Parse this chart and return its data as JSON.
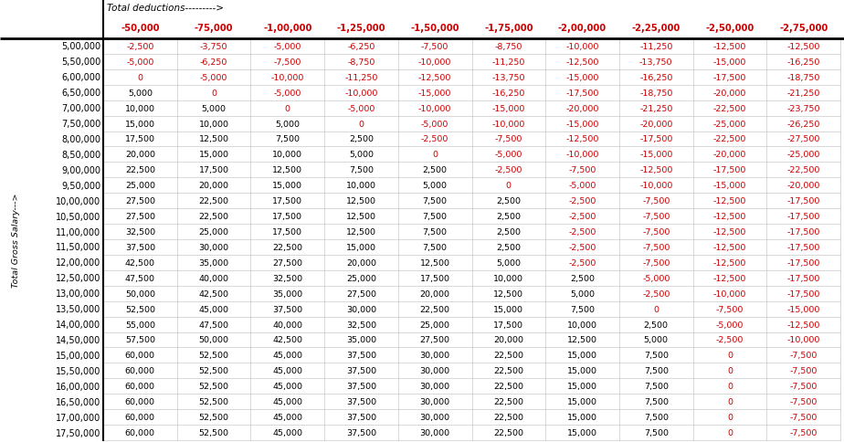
{
  "title_deductions": "Total deductions--------->",
  "col_header_label": "Total Gross Salary--->",
  "col_headers": [
    "-50,000",
    "-75,000",
    "-1,00,000",
    "-1,25,000",
    "-1,50,000",
    "-1,75,000",
    "-2,00,000",
    "-2,25,000",
    "-2,50,000",
    "-2,75,000"
  ],
  "row_labels": [
    "5,00,000",
    "5,50,000",
    "6,00,000",
    "6,50,000",
    "7,00,000",
    "7,50,000",
    "8,00,000",
    "8,50,000",
    "9,00,000",
    "9,50,000",
    "10,00,000",
    "10,50,000",
    "11,00,000",
    "11,50,000",
    "12,00,000",
    "12,50,000",
    "13,00,000",
    "13,50,000",
    "14,00,000",
    "14,50,000",
    "15,00,000",
    "15,50,000",
    "16,00,000",
    "16,50,000",
    "17,00,000",
    "17,50,000"
  ],
  "cell_data": [
    [
      "-2,500",
      "-3,750",
      "-5,000",
      "-6,250",
      "-7,500",
      "-8,750",
      "-10,000",
      "-11,250",
      "-12,500",
      "-12,500"
    ],
    [
      "-5,000",
      "-6,250",
      "-7,500",
      "-8,750",
      "-10,000",
      "-11,250",
      "-12,500",
      "-13,750",
      "-15,000",
      "-16,250"
    ],
    [
      "0",
      "-5,000",
      "-10,000",
      "-11,250",
      "-12,500",
      "-13,750",
      "-15,000",
      "-16,250",
      "-17,500",
      "-18,750"
    ],
    [
      "5,000",
      "0",
      "-5,000",
      "-10,000",
      "-15,000",
      "-16,250",
      "-17,500",
      "-18,750",
      "-20,000",
      "-21,250"
    ],
    [
      "10,000",
      "5,000",
      "0",
      "-5,000",
      "-10,000",
      "-15,000",
      "-20,000",
      "-21,250",
      "-22,500",
      "-23,750"
    ],
    [
      "15,000",
      "10,000",
      "5,000",
      "0",
      "-5,000",
      "-10,000",
      "-15,000",
      "-20,000",
      "-25,000",
      "-26,250"
    ],
    [
      "17,500",
      "12,500",
      "7,500",
      "2,500",
      "-2,500",
      "-7,500",
      "-12,500",
      "-17,500",
      "-22,500",
      "-27,500"
    ],
    [
      "20,000",
      "15,000",
      "10,000",
      "5,000",
      "0",
      "-5,000",
      "-10,000",
      "-15,000",
      "-20,000",
      "-25,000"
    ],
    [
      "22,500",
      "17,500",
      "12,500",
      "7,500",
      "2,500",
      "-2,500",
      "-7,500",
      "-12,500",
      "-17,500",
      "-22,500"
    ],
    [
      "25,000",
      "20,000",
      "15,000",
      "10,000",
      "5,000",
      "0",
      "-5,000",
      "-10,000",
      "-15,000",
      "-20,000"
    ],
    [
      "27,500",
      "22,500",
      "17,500",
      "12,500",
      "7,500",
      "2,500",
      "-2,500",
      "-7,500",
      "-12,500",
      "-17,500"
    ],
    [
      "27,500",
      "22,500",
      "17,500",
      "12,500",
      "7,500",
      "2,500",
      "-2,500",
      "-7,500",
      "-12,500",
      "-17,500"
    ],
    [
      "32,500",
      "25,000",
      "17,500",
      "12,500",
      "7,500",
      "2,500",
      "-2,500",
      "-7,500",
      "-12,500",
      "-17,500"
    ],
    [
      "37,500",
      "30,000",
      "22,500",
      "15,000",
      "7,500",
      "2,500",
      "-2,500",
      "-7,500",
      "-12,500",
      "-17,500"
    ],
    [
      "42,500",
      "35,000",
      "27,500",
      "20,000",
      "12,500",
      "5,000",
      "-2,500",
      "-7,500",
      "-12,500",
      "-17,500"
    ],
    [
      "47,500",
      "40,000",
      "32,500",
      "25,000",
      "17,500",
      "10,000",
      "2,500",
      "-5,000",
      "-12,500",
      "-17,500"
    ],
    [
      "50,000",
      "42,500",
      "35,000",
      "27,500",
      "20,000",
      "12,500",
      "5,000",
      "-2,500",
      "-10,000",
      "-17,500"
    ],
    [
      "52,500",
      "45,000",
      "37,500",
      "30,000",
      "22,500",
      "15,000",
      "7,500",
      "0",
      "-7,500",
      "-15,000"
    ],
    [
      "55,000",
      "47,500",
      "40,000",
      "32,500",
      "25,000",
      "17,500",
      "10,000",
      "2,500",
      "-5,000",
      "-12,500"
    ],
    [
      "57,500",
      "50,000",
      "42,500",
      "35,000",
      "27,500",
      "20,000",
      "12,500",
      "5,000",
      "-2,500",
      "-10,000"
    ],
    [
      "60,000",
      "52,500",
      "45,000",
      "37,500",
      "30,000",
      "22,500",
      "15,000",
      "7,500",
      "0",
      "-7,500"
    ],
    [
      "60,000",
      "52,500",
      "45,000",
      "37,500",
      "30,000",
      "22,500",
      "15,000",
      "7,500",
      "0",
      "-7,500"
    ],
    [
      "60,000",
      "52,500",
      "45,000",
      "37,500",
      "30,000",
      "22,500",
      "15,000",
      "7,500",
      "0",
      "-7,500"
    ],
    [
      "60,000",
      "52,500",
      "45,000",
      "37,500",
      "30,000",
      "22,500",
      "15,000",
      "7,500",
      "0",
      "-7,500"
    ],
    [
      "60,000",
      "52,500",
      "45,000",
      "37,500",
      "30,000",
      "22,500",
      "15,000",
      "7,500",
      "0",
      "-7,500"
    ],
    [
      "60,000",
      "52,500",
      "45,000",
      "37,500",
      "30,000",
      "22,500",
      "15,000",
      "7,500",
      "0",
      "-7,500"
    ]
  ],
  "positive_color": "#000000",
  "negative_color": "#cc0000",
  "zero_color": "#cc0000",
  "bg_color": "#ffffff",
  "grid_color": "#bbbbbb",
  "row_label_color": "#000000",
  "col_header_color": "#cc0000",
  "header_line_color": "#000000",
  "font_size_cell": 6.8,
  "font_size_header": 7.2,
  "font_size_row_label": 7.0,
  "font_size_title": 7.5,
  "font_size_side_label": 6.8
}
